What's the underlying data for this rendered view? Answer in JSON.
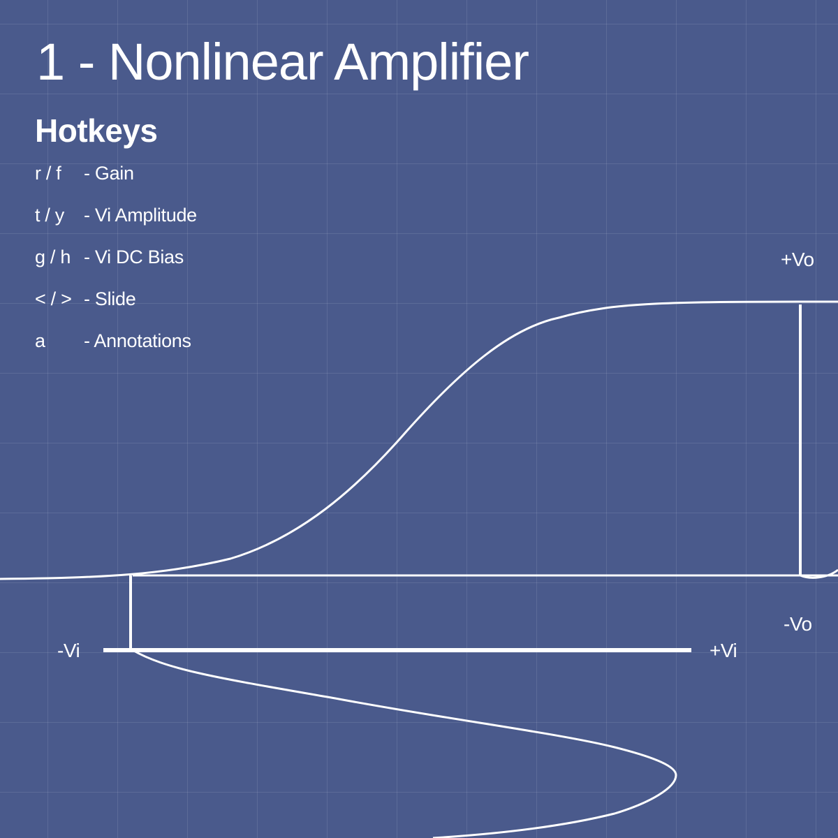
{
  "title": "1 - Nonlinear Amplifier",
  "hotkeys": {
    "heading": "Hotkeys",
    "items": [
      {
        "keys": "r / f",
        "action": "- Gain"
      },
      {
        "keys": "t / y",
        "action": "- Vi Amplitude"
      },
      {
        "keys": "g / h",
        "action": "- Vi DC Bias"
      },
      {
        "keys": "< / >",
        "action": "- Slide"
      },
      {
        "keys": "a",
        "action": "- Annotations"
      }
    ]
  },
  "labels": {
    "plus_vo": "+Vo",
    "minus_vo": "-Vo",
    "minus_vi": "-Vi",
    "plus_vi": "+Vi"
  },
  "colors": {
    "background": "#4a5a8c",
    "foreground": "#ffffff"
  }
}
